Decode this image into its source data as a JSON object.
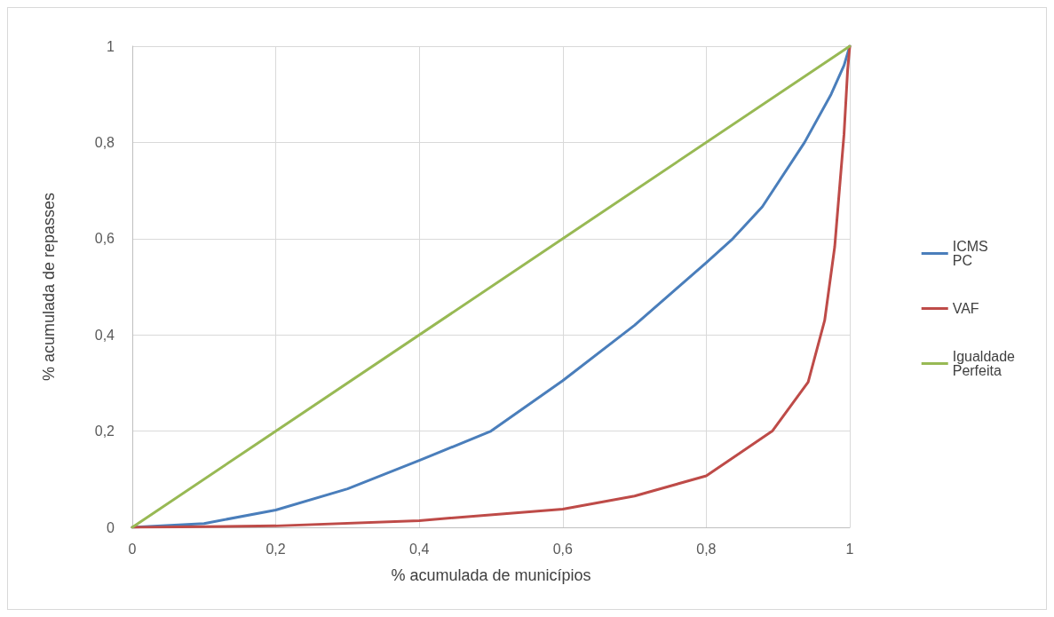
{
  "chart_data": {
    "type": "line",
    "xlabel": "% acumulada de municípios",
    "ylabel": "% acumulada de repasses",
    "xlim": [
      0,
      1
    ],
    "xticks": [
      {
        "value": 0,
        "label": "0"
      },
      {
        "value": 0.2,
        "label": "0,2"
      },
      {
        "value": 0.4,
        "label": "0,4"
      },
      {
        "value": 0.6,
        "label": "0,6"
      },
      {
        "value": 0.8,
        "label": "0,8"
      },
      {
        "value": 1,
        "label": "1"
      }
    ],
    "ylim": [
      0,
      1
    ],
    "yticks": [
      {
        "value": 0,
        "label": "0"
      },
      {
        "value": 0.2,
        "label": "0,2"
      },
      {
        "value": 0.4,
        "label": "0,4"
      },
      {
        "value": 0.6,
        "label": "0,6"
      },
      {
        "value": 0.8,
        "label": "0,8"
      },
      {
        "value": 1,
        "label": "1"
      }
    ],
    "grid": true,
    "legend": "right",
    "marker": "none",
    "line_style": "solid",
    "series": [
      {
        "name": "ICMS PC",
        "color": "#4a7ebb",
        "x": [
          0,
          0.1,
          0.2,
          0.3,
          0.4,
          0.5,
          0.6,
          0.7,
          0.8,
          0.837,
          0.878,
          0.937,
          0.974,
          0.992,
          1
        ],
        "values": [
          0,
          0.008,
          0.036,
          0.08,
          0.139,
          0.2,
          0.305,
          0.42,
          0.55,
          0.6,
          0.666,
          0.8,
          0.9,
          0.96,
          1
        ]
      },
      {
        "name": "VAF",
        "color": "#be4b48",
        "x": [
          0,
          0.2,
          0.4,
          0.6,
          0.7,
          0.8,
          0.892,
          0.942,
          0.965,
          0.979,
          0.992,
          0.997,
          1
        ],
        "values": [
          0,
          0.003,
          0.014,
          0.038,
          0.065,
          0.107,
          0.2,
          0.302,
          0.43,
          0.583,
          0.817,
          0.95,
          1
        ]
      },
      {
        "name": "Igualdade Perfeita",
        "color": "#98b954",
        "x": [
          0,
          1
        ],
        "values": [
          0,
          1
        ]
      }
    ]
  }
}
